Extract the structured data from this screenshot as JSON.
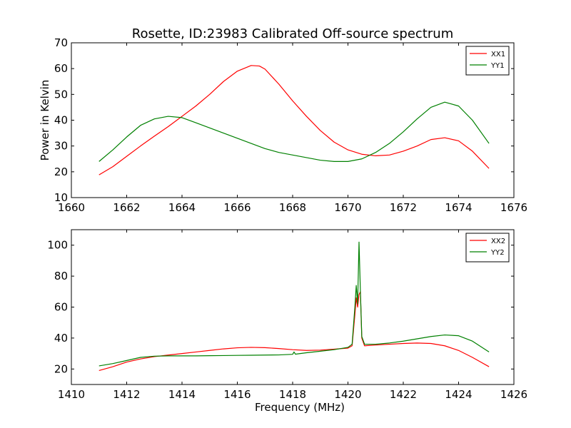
{
  "figure": {
    "title": "Rosette, ID:23983 Calibrated Off-source spectrum"
  },
  "chart_data": [
    {
      "type": "line",
      "title": "Rosette, ID:23983 Calibrated Off-source spectrum",
      "xlabel": "",
      "ylabel": "Power in Kelvin",
      "xlim": [
        1660,
        1676
      ],
      "ylim": [
        10,
        70
      ],
      "xticks": [
        1660,
        1662,
        1664,
        1666,
        1668,
        1670,
        1672,
        1674,
        1676
      ],
      "yticks": [
        10,
        20,
        30,
        40,
        50,
        60,
        70
      ],
      "grid": false,
      "legend_position": "top-right",
      "series": [
        {
          "name": "XX1",
          "color": "#ff0000",
          "x": [
            1661.0,
            1661.5,
            1662.0,
            1662.5,
            1663.0,
            1663.5,
            1664.0,
            1664.5,
            1665.0,
            1665.5,
            1666.0,
            1666.5,
            1666.8,
            1667.0,
            1667.5,
            1668.0,
            1668.5,
            1669.0,
            1669.5,
            1670.0,
            1670.5,
            1671.0,
            1671.5,
            1672.0,
            1672.5,
            1673.0,
            1673.5,
            1674.0,
            1674.5,
            1675.1
          ],
          "y": [
            18.8,
            22.0,
            26.0,
            30.0,
            33.8,
            37.5,
            41.5,
            45.5,
            50.0,
            55.0,
            59.0,
            61.2,
            61.0,
            59.8,
            54.0,
            47.5,
            41.5,
            36.0,
            31.5,
            28.5,
            26.8,
            26.2,
            26.5,
            28.0,
            30.0,
            32.5,
            33.2,
            32.0,
            28.0,
            21.3
          ]
        },
        {
          "name": "YY1",
          "color": "#008000",
          "x": [
            1661.0,
            1661.5,
            1662.0,
            1662.5,
            1663.0,
            1663.5,
            1664.0,
            1664.5,
            1665.0,
            1665.5,
            1666.0,
            1666.5,
            1667.0,
            1667.5,
            1668.0,
            1668.5,
            1669.0,
            1669.5,
            1670.0,
            1670.5,
            1671.0,
            1671.5,
            1672.0,
            1672.5,
            1673.0,
            1673.5,
            1674.0,
            1674.5,
            1675.1
          ],
          "y": [
            24.0,
            28.5,
            33.5,
            38.0,
            40.5,
            41.5,
            41.0,
            39.0,
            37.0,
            35.0,
            33.0,
            31.0,
            29.0,
            27.5,
            26.5,
            25.5,
            24.5,
            24.0,
            24.0,
            25.0,
            27.5,
            31.0,
            35.5,
            40.5,
            45.0,
            47.0,
            45.5,
            40.0,
            31.0
          ]
        }
      ]
    },
    {
      "type": "line",
      "title": "",
      "xlabel": "Frequency (MHz)",
      "ylabel": "",
      "xlim": [
        1410,
        1426
      ],
      "ylim": [
        10,
        110
      ],
      "xticks": [
        1410,
        1412,
        1414,
        1416,
        1418,
        1420,
        1422,
        1424,
        1426
      ],
      "yticks": [
        20,
        40,
        60,
        80,
        100
      ],
      "grid": false,
      "legend_position": "top-right",
      "series": [
        {
          "name": "XX2",
          "color": "#ff0000",
          "x": [
            1411.0,
            1411.5,
            1412.0,
            1412.5,
            1413.0,
            1413.5,
            1414.0,
            1414.5,
            1415.0,
            1415.5,
            1416.0,
            1416.5,
            1417.0,
            1417.5,
            1418.0,
            1418.5,
            1419.0,
            1419.5,
            1420.0,
            1420.15,
            1420.25,
            1420.3,
            1420.35,
            1420.4,
            1420.45,
            1420.5,
            1420.6,
            1421.0,
            1421.5,
            1422.0,
            1422.5,
            1423.0,
            1423.5,
            1424.0,
            1424.5,
            1425.1
          ],
          "y": [
            19.0,
            21.5,
            24.5,
            26.5,
            28.0,
            29.0,
            30.0,
            31.0,
            32.0,
            33.0,
            33.7,
            34.0,
            33.8,
            33.2,
            32.5,
            32.0,
            32.2,
            32.8,
            33.5,
            35.0,
            55.0,
            66.0,
            60.0,
            68.0,
            70.0,
            40.0,
            35.0,
            35.5,
            36.0,
            36.5,
            36.8,
            36.5,
            35.0,
            32.0,
            27.5,
            21.5
          ]
        },
        {
          "name": "YY2",
          "color": "#008000",
          "x": [
            1411.0,
            1411.5,
            1412.0,
            1412.5,
            1413.0,
            1413.5,
            1414.0,
            1414.5,
            1415.0,
            1415.5,
            1416.0,
            1416.5,
            1417.0,
            1417.5,
            1418.0,
            1418.05,
            1418.1,
            1418.5,
            1419.0,
            1419.5,
            1420.0,
            1420.15,
            1420.25,
            1420.3,
            1420.35,
            1420.4,
            1420.45,
            1420.5,
            1420.6,
            1421.0,
            1421.5,
            1422.0,
            1422.5,
            1423.0,
            1423.5,
            1424.0,
            1424.5,
            1425.1
          ],
          "y": [
            22.0,
            23.5,
            25.5,
            27.5,
            28.3,
            28.5,
            28.5,
            28.5,
            28.6,
            28.7,
            28.8,
            28.9,
            29.0,
            29.1,
            29.5,
            31.0,
            29.6,
            30.5,
            31.5,
            32.5,
            34.0,
            36.0,
            60.0,
            74.0,
            62.0,
            102.0,
            70.0,
            41.0,
            36.0,
            36.0,
            36.8,
            38.0,
            39.5,
            41.0,
            42.0,
            41.5,
            38.0,
            31.0
          ]
        }
      ]
    }
  ]
}
